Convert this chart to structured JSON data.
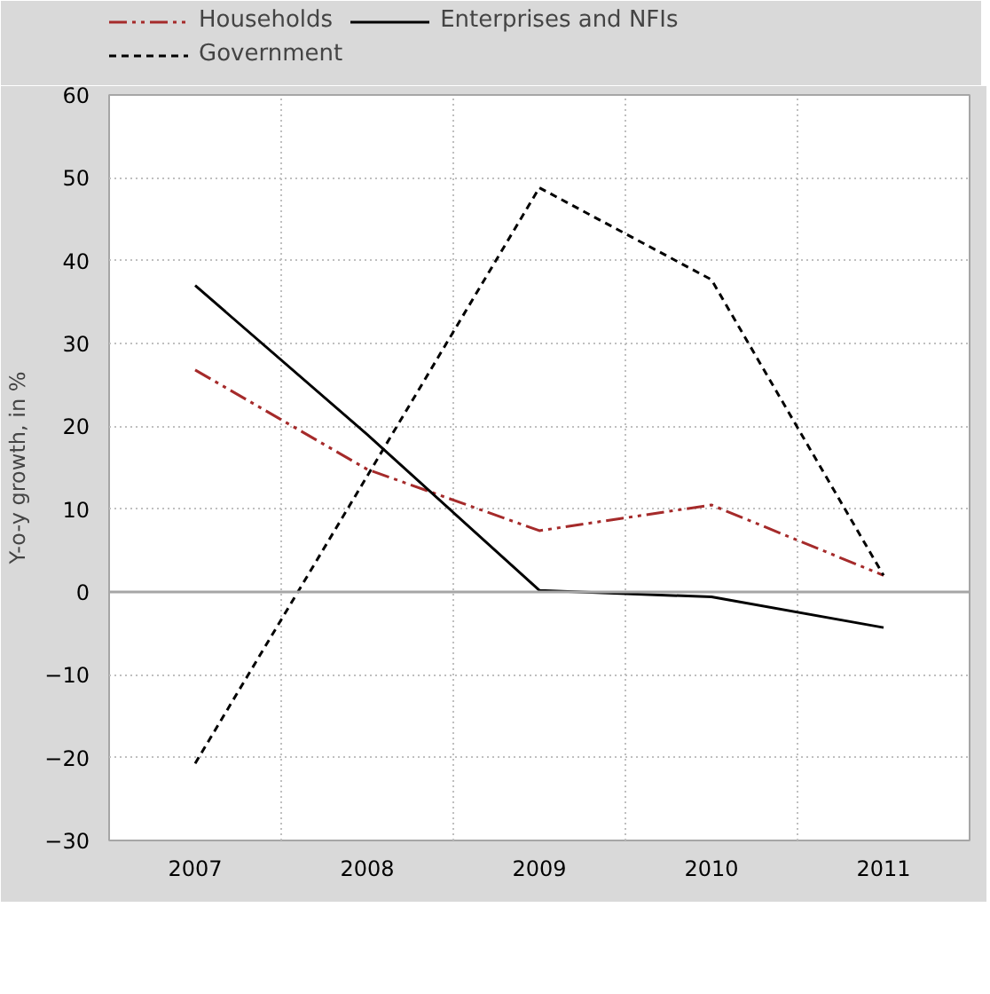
{
  "chart_data": {
    "type": "line",
    "ylabel": "Y-o-y growth, in %",
    "categories": [
      "2007",
      "2008",
      "2009",
      "2010",
      "2011"
    ],
    "series": [
      {
        "name": "Households",
        "color": "#a52a2a",
        "line_style": "dashdot",
        "values": [
          26.8,
          14.8,
          7.4,
          10.5,
          2.0
        ]
      },
      {
        "name": "Enterprises and NFIs",
        "color": "#000000",
        "line_style": "solid",
        "values": [
          37.0,
          19.0,
          0.2,
          -0.6,
          -4.3
        ]
      },
      {
        "name": "Government",
        "color": "#000000",
        "line_style": "dashed",
        "values": [
          -20.7,
          14.0,
          48.8,
          37.7,
          2.0
        ]
      }
    ],
    "ylim": [
      -30,
      60
    ],
    "yticks": [
      -30,
      -20,
      -10,
      0,
      10,
      20,
      30,
      40,
      50,
      60
    ],
    "ref_lines": [
      {
        "axis": "y",
        "value": 0,
        "color": "#a6a6a6"
      }
    ],
    "grid": true,
    "legend": "top",
    "marker": "none"
  }
}
